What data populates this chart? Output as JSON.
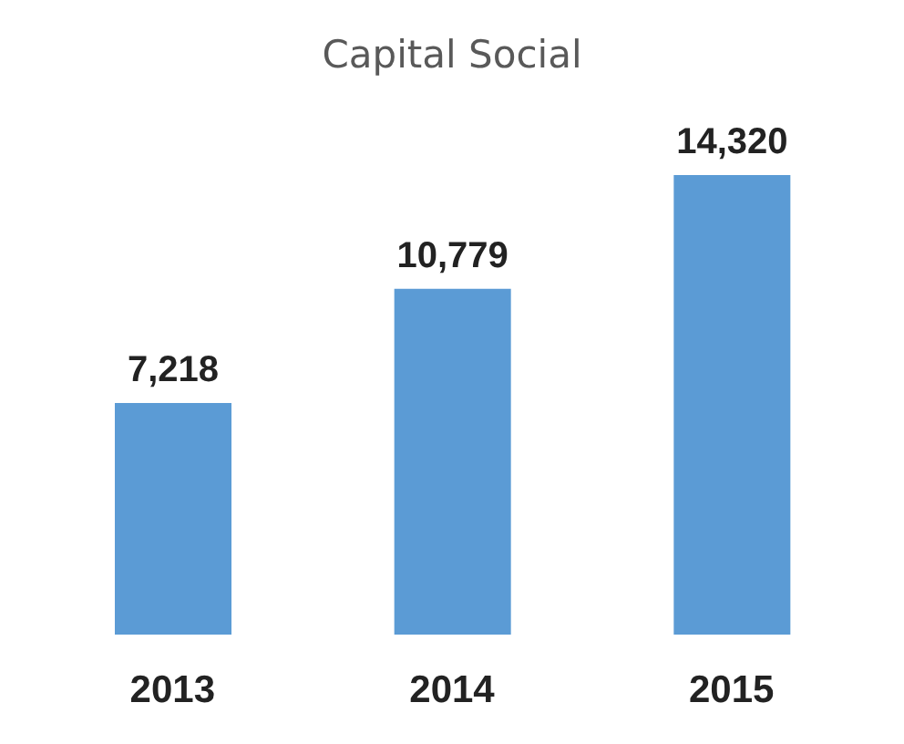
{
  "chart_data": {
    "type": "bar",
    "title": "Capital Social",
    "categories": [
      "2013",
      "2014",
      "2015"
    ],
    "values": [
      7218,
      10779,
      14320
    ],
    "color": "#5b9bd5",
    "value_labels": [
      "7,218",
      "10,779",
      "14,320"
    ]
  }
}
